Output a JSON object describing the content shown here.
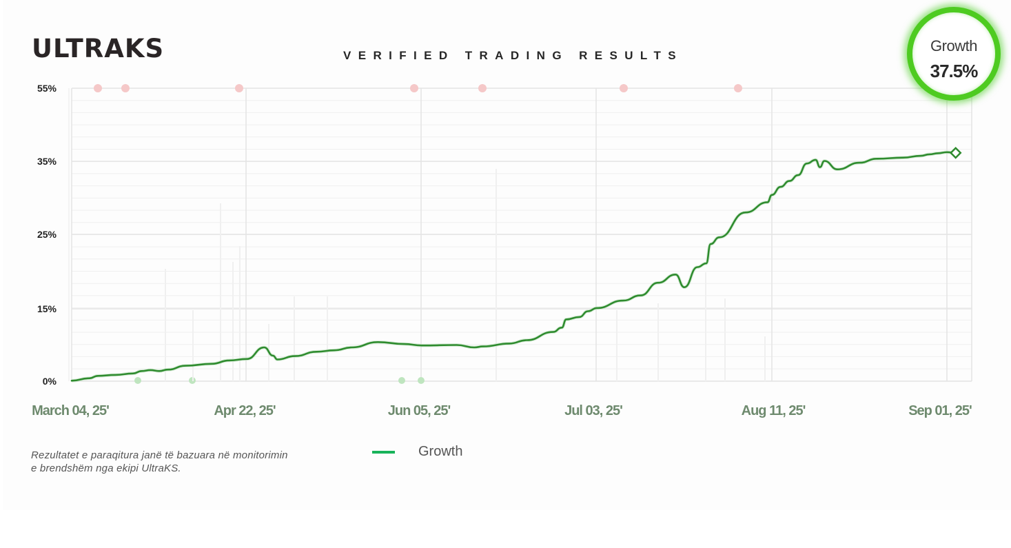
{
  "brand": "ULTRAKS",
  "headline": "VERIFIED TRADING RESULTS",
  "badge": {
    "label": "Growth",
    "value": "37.5%"
  },
  "footnote": {
    "line1": "Rezultatet e paraqitura janë të bazuara në monitorimin",
    "line2": "e brendshëm nga ekipi UltraKS."
  },
  "legend": {
    "label": "Growth",
    "color": "#18b35a"
  },
  "colors": {
    "line": "#2e8b2e",
    "grid": "#e4e4e4",
    "marker_red": "#f5c8c8",
    "marker_green": "#bfe5bf"
  },
  "chart_data": {
    "type": "line",
    "title": "",
    "xlabel": "",
    "ylabel": "",
    "grid": true,
    "legend_position": "bottom",
    "y_ticks": [
      {
        "label": "0%",
        "value": 0
      },
      {
        "label": "15%",
        "value": 15
      },
      {
        "label": "25%",
        "value": 25
      },
      {
        "label": "35%",
        "value": 35
      },
      {
        "label": "55%",
        "value": 55
      }
    ],
    "x_ticks": [
      "March 04, 25'",
      "Apr 22, 25'",
      "Jun 05, 25'",
      "Jul 03, 25'",
      "Aug 11, 25'",
      "Sep 01, 25'"
    ],
    "series": [
      {
        "name": "Growth",
        "x": [
          0,
          0.02,
          0.03,
          0.05,
          0.07,
          0.08,
          0.09,
          0.1,
          0.11,
          0.13,
          0.16,
          0.18,
          0.2,
          0.22,
          0.23,
          0.235,
          0.255,
          0.28,
          0.3,
          0.32,
          0.35,
          0.38,
          0.4,
          0.44,
          0.46,
          0.47,
          0.5,
          0.52,
          0.55,
          0.56,
          0.565,
          0.58,
          0.59,
          0.6,
          0.63,
          0.65,
          0.67,
          0.69,
          0.7,
          0.715,
          0.725,
          0.73,
          0.74,
          0.77,
          0.795,
          0.8,
          0.81,
          0.82,
          0.83,
          0.84,
          0.85,
          0.855,
          0.86,
          0.875,
          0.9,
          0.92,
          0.95,
          0.97,
          0.98,
          0.99,
          1.0,
          1.01
        ],
        "y": [
          0.1,
          0.6,
          1.1,
          1.3,
          1.6,
          2.1,
          2.3,
          2.1,
          2.4,
          3.2,
          3.6,
          4.3,
          4.6,
          7.0,
          5.3,
          4.5,
          5.2,
          6.1,
          6.4,
          7.0,
          8.1,
          7.7,
          7.4,
          7.5,
          7.0,
          7.2,
          7.8,
          8.5,
          10.2,
          11.1,
          12.8,
          13.3,
          14.5,
          15.1,
          16.1,
          16.8,
          18.5,
          19.6,
          17.9,
          20.6,
          21.1,
          23.7,
          24.6,
          28.0,
          29.4,
          30.4,
          31.5,
          32.3,
          33.1,
          34.7,
          35.4,
          34.2,
          35.1,
          33.9,
          34.8,
          35.7,
          36.0,
          36.5,
          36.9,
          37.2,
          37.5,
          37.3
        ]
      }
    ]
  }
}
